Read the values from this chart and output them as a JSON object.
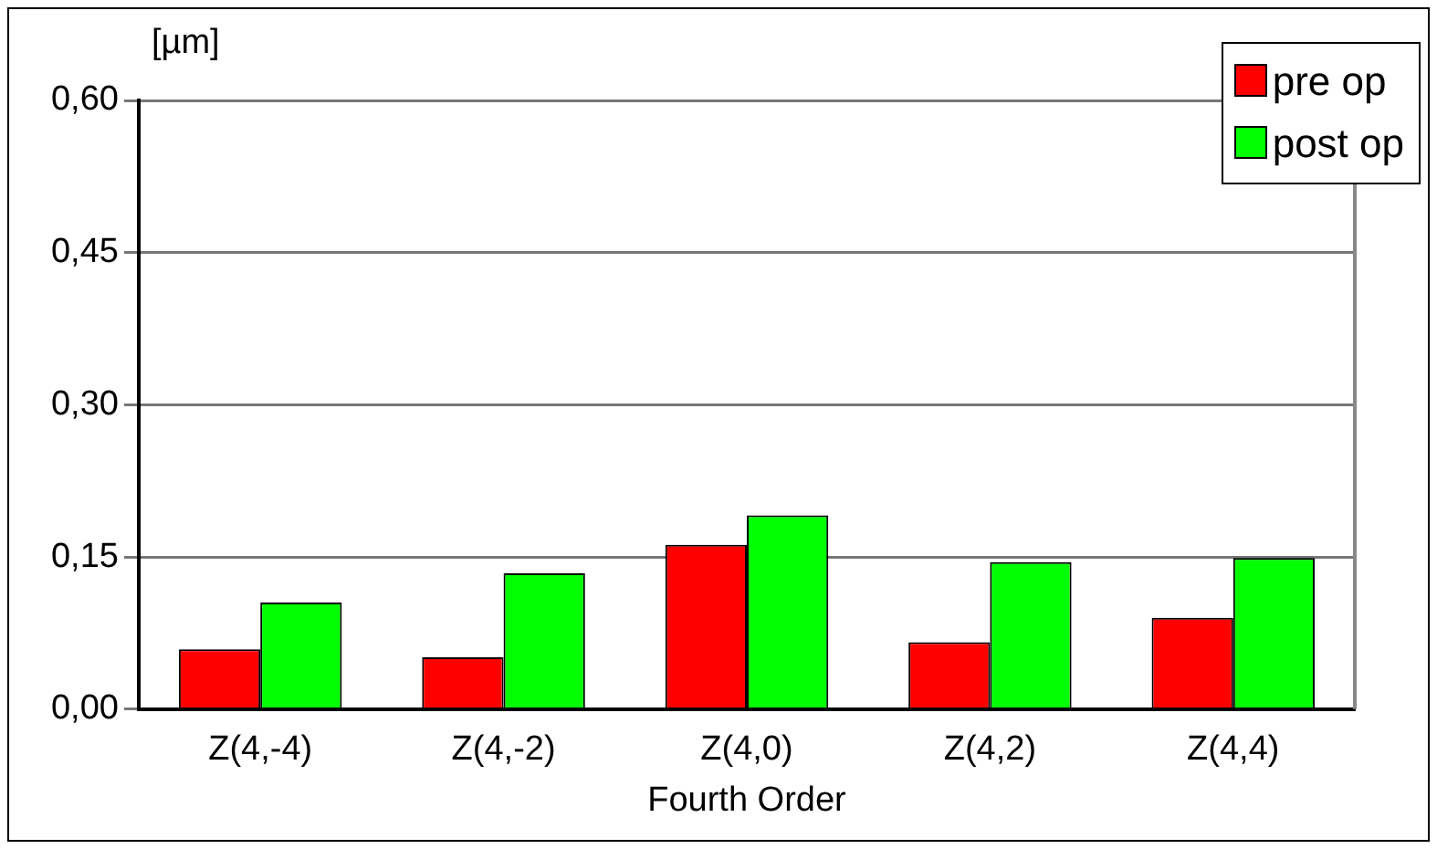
{
  "chart_data": {
    "type": "bar",
    "xlabel": "Fourth Order",
    "ylabel": "[µm]",
    "categories": [
      "Z(4,-4)",
      "Z(4,-2)",
      "Z(4,0)",
      "Z(4,2)",
      "Z(4,4)"
    ],
    "series": [
      {
        "name": "pre op",
        "color": "#ff0000",
        "values": [
          0.059,
          0.051,
          0.162,
          0.066,
          0.09
        ]
      },
      {
        "name": "post op",
        "color": "#00ff00",
        "values": [
          0.105,
          0.134,
          0.191,
          0.145,
          0.149
        ]
      }
    ],
    "ylim": [
      0,
      0.6
    ],
    "yticks": [
      {
        "value": 0,
        "label": "0,00"
      },
      {
        "value": 0.15,
        "label": "0,15"
      },
      {
        "value": 0.3,
        "label": "0,30"
      },
      {
        "value": 0.45,
        "label": "0,45"
      },
      {
        "value": 0.6,
        "label": "0,60"
      }
    ],
    "grid": "y",
    "legend": "top right"
  }
}
